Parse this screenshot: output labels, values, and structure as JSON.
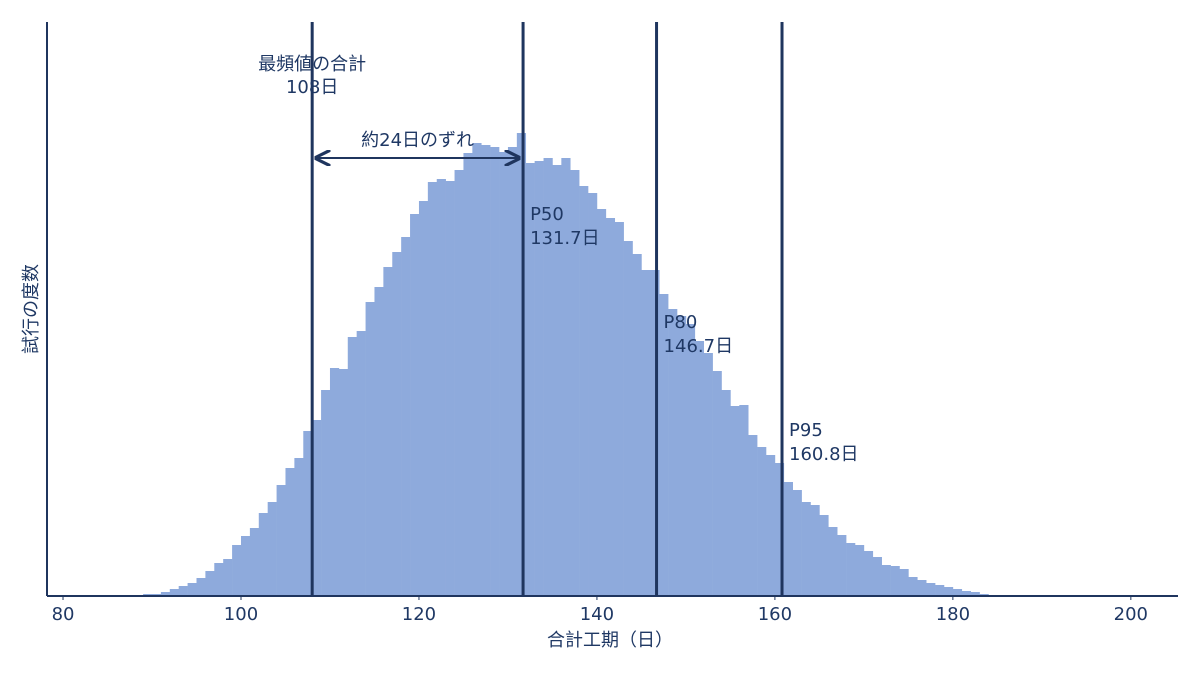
{
  "chart_data": {
    "type": "histogram",
    "x_label": "合計工期（日）",
    "y_label": "試行の度数",
    "color": "#8eaadc",
    "line_color": "#1f355e",
    "bins": [
      88,
      89,
      90,
      91,
      92,
      93,
      94,
      95,
      96,
      97,
      98,
      99,
      100,
      101,
      102,
      103,
      104,
      105,
      106,
      107,
      108,
      109,
      110,
      111,
      112,
      113,
      114,
      115,
      116,
      117,
      118,
      119,
      120,
      121,
      122,
      123,
      124,
      125,
      126,
      127,
      128,
      129,
      130,
      131,
      132,
      133,
      134,
      135,
      136,
      137,
      138,
      139,
      140,
      141,
      142,
      143,
      144,
      145,
      146,
      147,
      148,
      149,
      150,
      151,
      152,
      153,
      154,
      155,
      156,
      157,
      158,
      159,
      160,
      161,
      162,
      163,
      164,
      165,
      166,
      167,
      168,
      169,
      170,
      171,
      172,
      173,
      174,
      175,
      176,
      177,
      178,
      179,
      180,
      181,
      182,
      183,
      184,
      185,
      186
    ],
    "counts": [
      1,
      2,
      2,
      4,
      7,
      10,
      13,
      18,
      25,
      33,
      37,
      51,
      60,
      68,
      83,
      94,
      111,
      128,
      138,
      165,
      176,
      206,
      228,
      227,
      259,
      265,
      294,
      309,
      329,
      344,
      359,
      382,
      395,
      414,
      417,
      415,
      426,
      443,
      453,
      451,
      449,
      444,
      449,
      463,
      433,
      435,
      438,
      431,
      438,
      426,
      410,
      403,
      387,
      378,
      374,
      355,
      342,
      326,
      326,
      302,
      287,
      280,
      272,
      255,
      243,
      225,
      206,
      190,
      191,
      161,
      149,
      141,
      133,
      114,
      106,
      94,
      91,
      81,
      69,
      61,
      53,
      51,
      45,
      39,
      31,
      30,
      27,
      19,
      16,
      13,
      11,
      9,
      7,
      5,
      4,
      2,
      1,
      1
    ],
    "xlim": [
      78.2,
      205.3
    ],
    "ylim": [
      0,
      574
    ],
    "xticks": [
      80,
      100,
      120,
      140,
      160,
      180,
      200
    ],
    "markers": [
      {
        "value": 108,
        "label": [
          "最頻値の合計",
          "108日"
        ]
      },
      {
        "value": 131.7,
        "label": [
          "P50",
          "131.7日"
        ]
      },
      {
        "value": 146.7,
        "label": [
          "P80",
          "146.7日"
        ]
      },
      {
        "value": 160.8,
        "label": [
          "P95",
          "160.8日"
        ]
      }
    ],
    "arrow": {
      "text": "約24日のずれ",
      "from": 108,
      "to": 131.7
    }
  }
}
